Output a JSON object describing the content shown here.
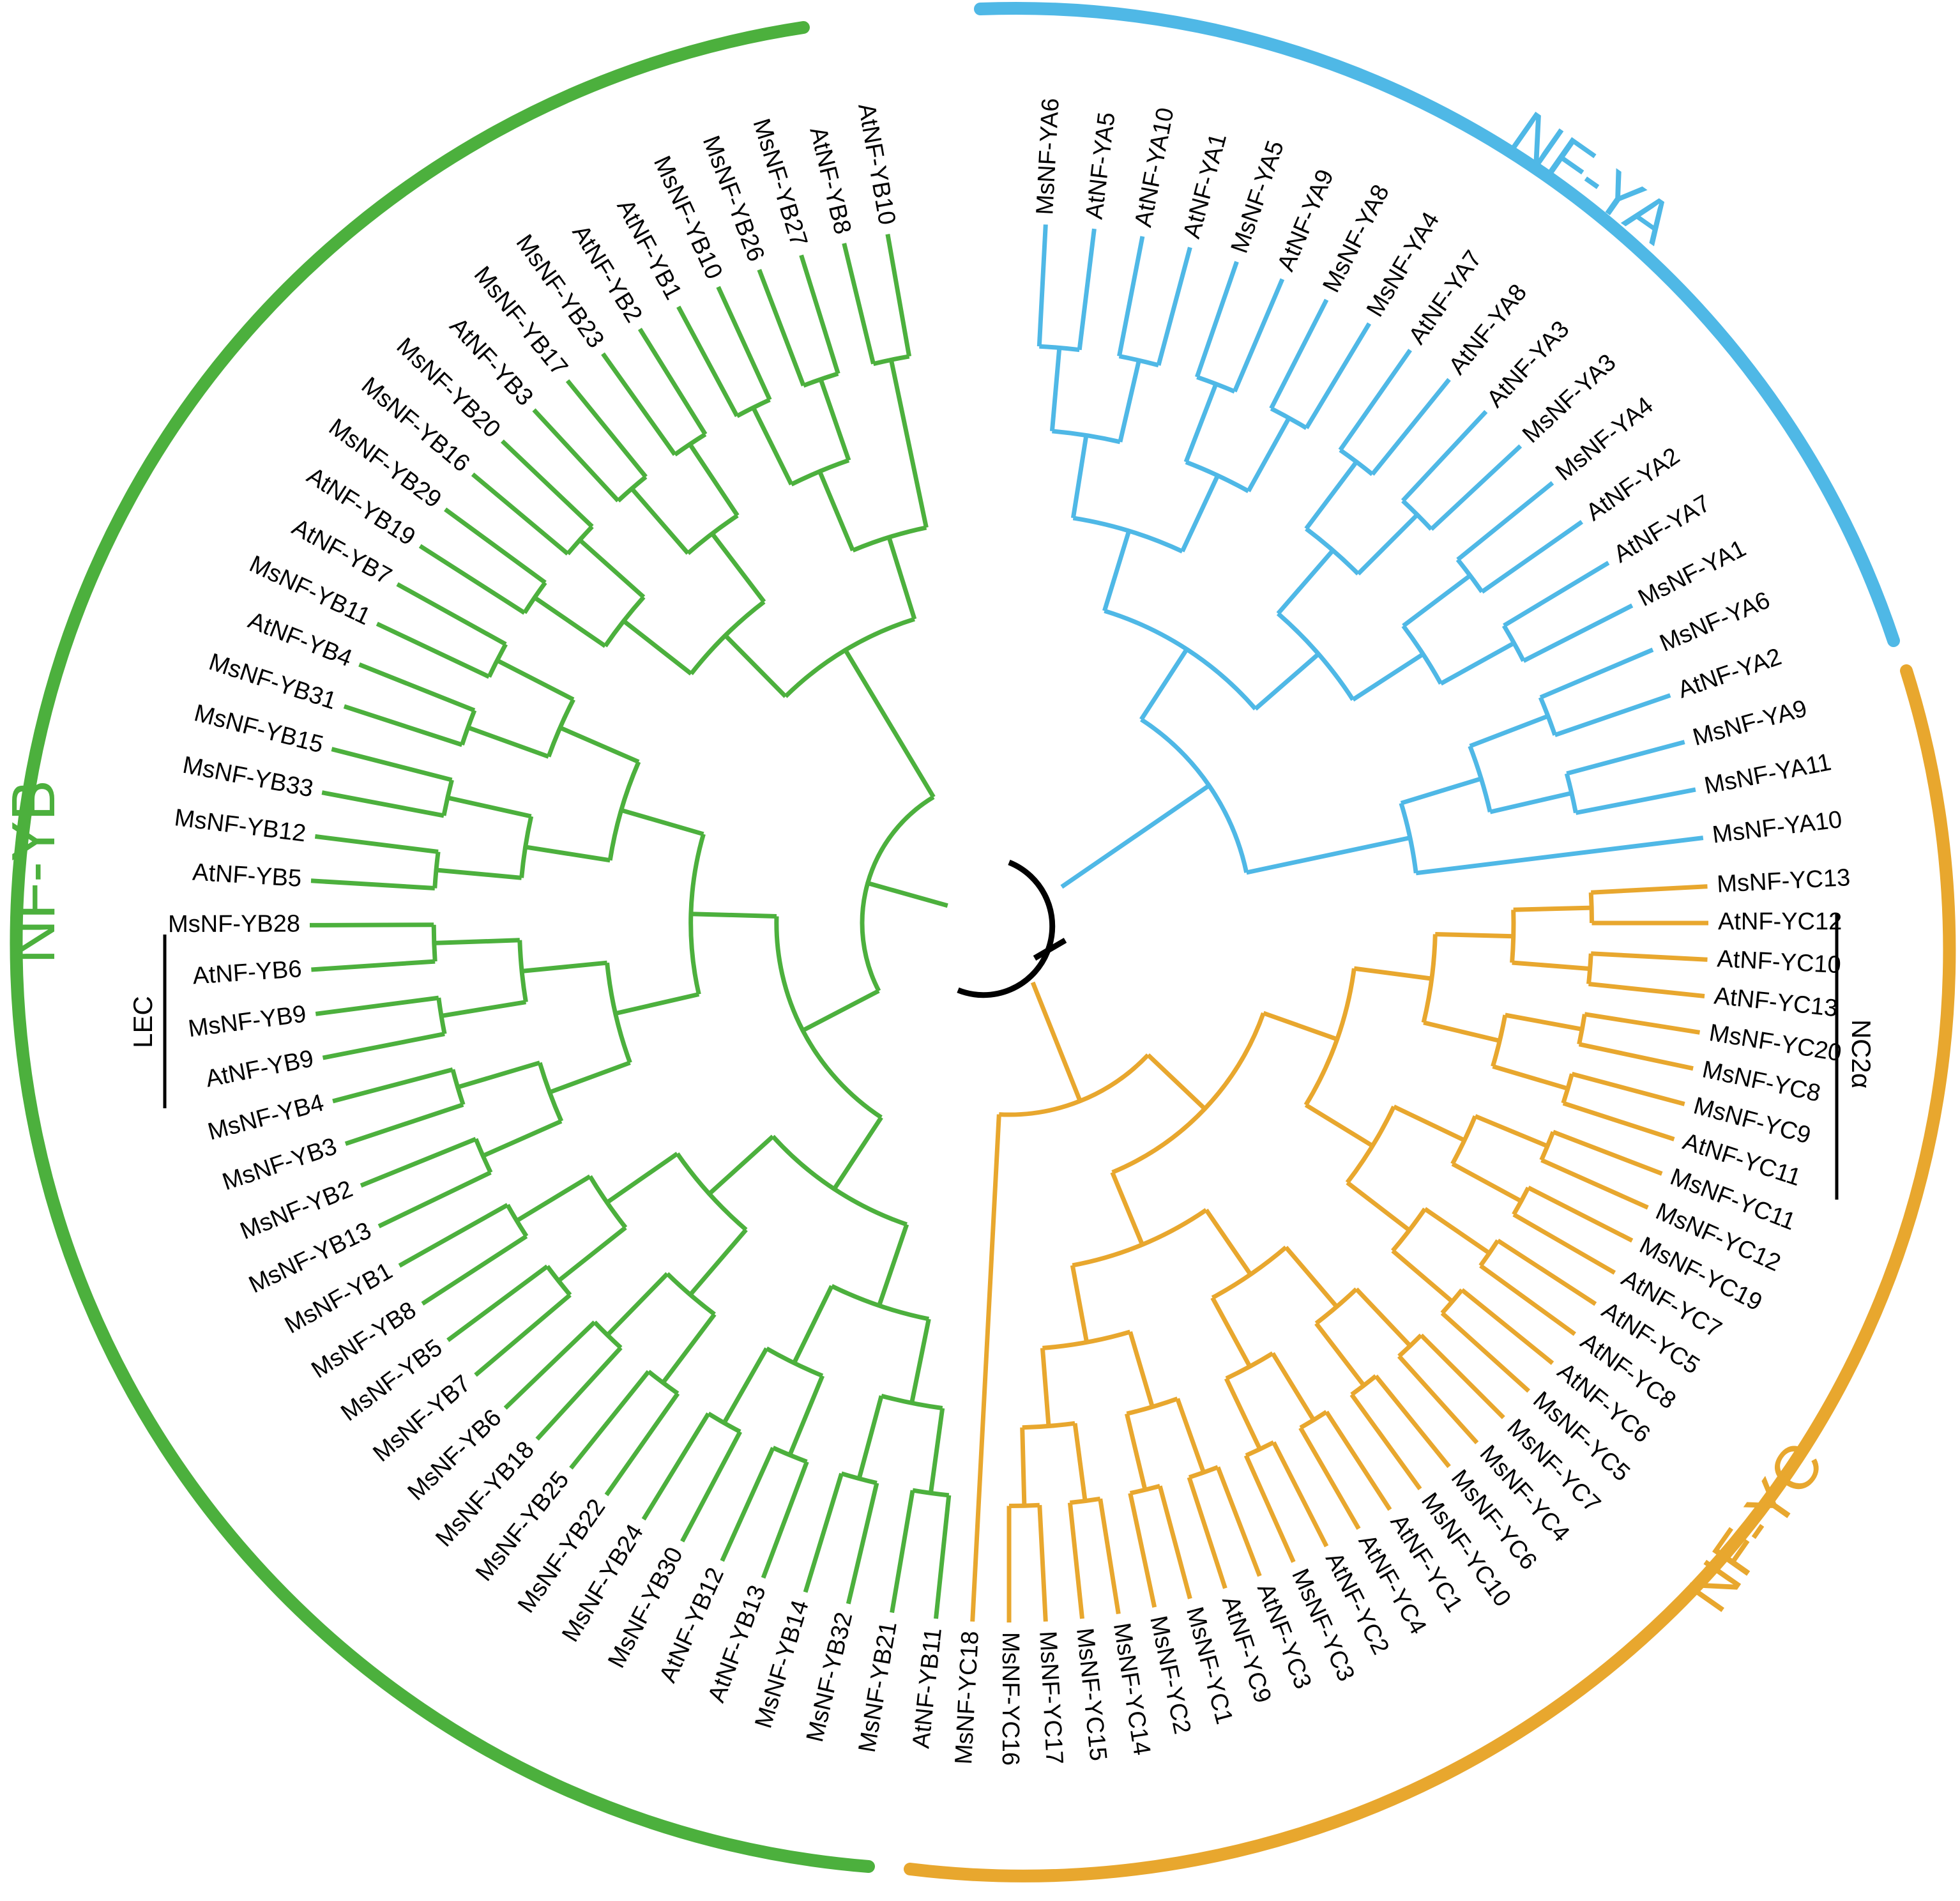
{
  "colors": {
    "nf_ya": "#4fb8e6",
    "nf_yb": "#4cb03d",
    "nf_yc": "#e8a72e",
    "root": "#000000"
  },
  "groups": {
    "nf_ya": {
      "title": "NF-YA",
      "leaves": [
        "MsNF-YA6",
        "AtNF-YA5",
        "AtNF-YA10",
        "AtNF-YA1",
        "MsNF-YA5",
        "AtNF-YA9",
        "MsNF-YA8",
        "MsNF-YA4",
        "AtNF-YA7",
        "AtNF-YA8",
        "AtNF-YA3",
        "MsNF-YA3",
        "MsNF-YA4",
        "AtNF-YA2",
        "AtNF-YA7",
        "MsNF-YA1",
        "MsNF-YA6",
        "AtNF-YA2",
        "MsNF-YA9",
        "MsNF-YA11",
        "MsNF-YA10"
      ]
    },
    "nf_yc": {
      "title": "NF-YC",
      "leaves": [
        "MsNF-YC13",
        "AtNF-YC12",
        "AtNF-YC10",
        "AtNF-YC13",
        "MsNF-YC20",
        "MsNF-YC8",
        "MsNF-YC9",
        "AtNF-YC11",
        "MsNF-YC11",
        "MsNF-YC12",
        "MsNF-YC19",
        "AtNF-YC7",
        "AtNF-YC5",
        "AtNF-YC8",
        "AtNF-YC6",
        "MsNF-YC5",
        "MsNF-YC7",
        "MsNF-YC4",
        "MsNF-YC6",
        "MsNF-YC10",
        "AtNF-YC1",
        "AtNF-YC4",
        "AtNF-YC2",
        "MsNF-YC3",
        "AtNF-YC3",
        "AtNF-YC9",
        "MsNF-YC1",
        "MsNF-YC2",
        "MsNF-YC14",
        "MsNF-YC15",
        "MsNF-YC17",
        "MsNF-YC16",
        "MsNF-YC18"
      ]
    },
    "nf_yb": {
      "title": "NF-YB",
      "leaves": [
        "AtNF-YB11",
        "MsNF-YB21",
        "MsNF-YB32",
        "MsNF-YB14",
        "AtNF-YB13",
        "AtNF-YB12",
        "MsNF-YB30",
        "MsNF-YB24",
        "MsNF-YB22",
        "MsNF-YB25",
        "MsNF-YB18",
        "MsNF-YB6",
        "MsNF-YB7",
        "MsNF-YB5",
        "MsNF-YB8",
        "MsNF-YB1",
        "MsNF-YB13",
        "MsNF-YB2",
        "MsNF-YB3",
        "MsNF-YB4",
        "AtNF-YB9",
        "MsNF-YB9",
        "AtNF-YB6",
        "MsNF-YB28",
        "AtNF-YB5",
        "MsNF-YB12",
        "MsNF-YB33",
        "MsNF-YB15",
        "MsNF-YB31",
        "AtNF-YB4",
        "MsNF-YB11",
        "AtNF-YB7",
        "AtNF-YB19",
        "MsNF-YB29",
        "MsNF-YB16",
        "MsNF-YB20",
        "AtNF-YB3",
        "MsNF-YB17",
        "MsNF-YB23",
        "AtNF-YB2",
        "AtNF-YB1",
        "MsNF-YB10",
        "MsNF-YB26",
        "MsNF-YB27",
        "AtNF-YB8",
        "AtNF-YB10"
      ]
    }
  },
  "subclades": {
    "nc2a": "NC2α",
    "lec": "LEC"
  }
}
